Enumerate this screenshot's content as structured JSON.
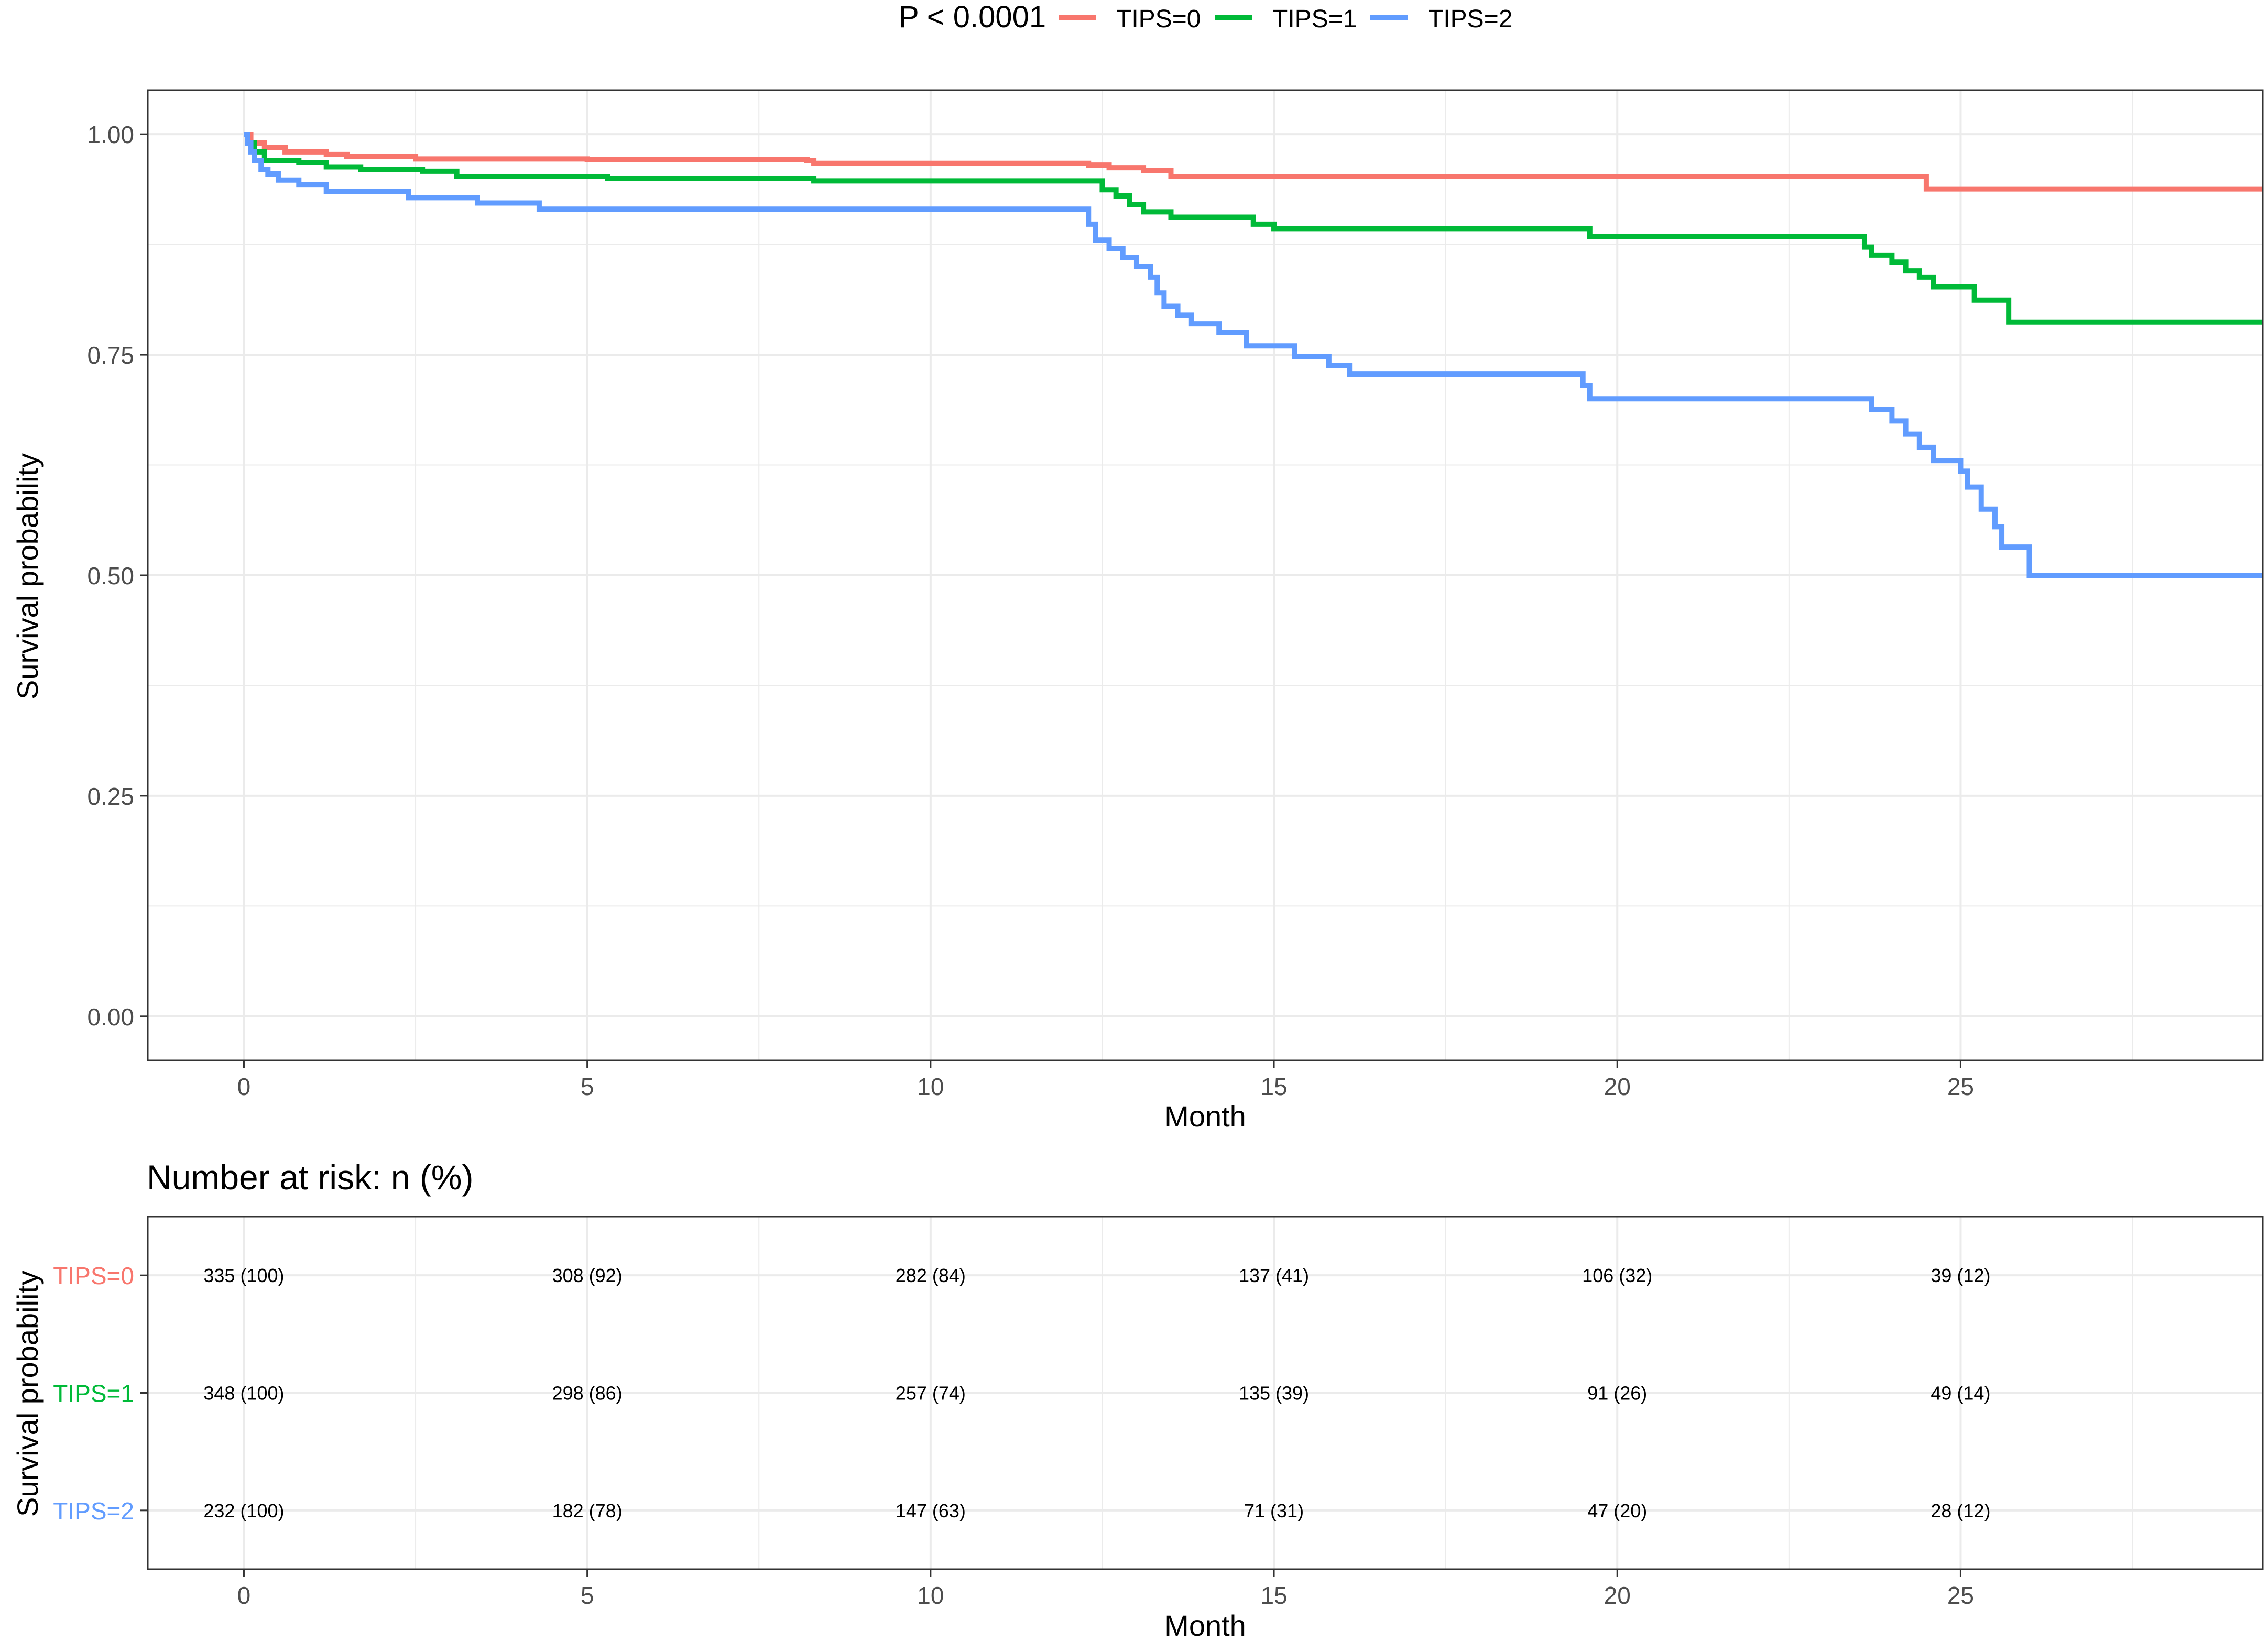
{
  "colors": {
    "tips0": "#F8766D",
    "tips1": "#00BA38",
    "tips2": "#619CFF",
    "grid": "#EBEBEB",
    "axis_text": "#4D4D4D",
    "panel_border": "#333333"
  },
  "legend": {
    "pvalue": "P < 0.0001",
    "position": "top",
    "items": [
      {
        "label": "TIPS=0",
        "color": "#F8766D"
      },
      {
        "label": "TIPS=1",
        "color": "#00BA38"
      },
      {
        "label": "TIPS=2",
        "color": "#619CFF"
      }
    ]
  },
  "chart_data": [
    {
      "type": "line",
      "subtype": "kaplan-meier-step",
      "title": "",
      "xlabel": "Month",
      "ylabel": "Survival probability",
      "xlim": [
        -1.4,
        29.4
      ],
      "ylim": [
        -0.05,
        1.05
      ],
      "x_ticks": [
        0,
        5,
        10,
        15,
        20,
        25
      ],
      "y_ticks": [
        0.0,
        0.25,
        0.5,
        0.75,
        1.0
      ],
      "y_tick_labels": [
        "0.00",
        "0.25",
        "0.50",
        "0.75",
        "1.00"
      ],
      "grid": true,
      "series": [
        {
          "name": "TIPS=0",
          "color": "#F8766D",
          "points": [
            [
              0,
              1.0
            ],
            [
              0.1,
              0.99
            ],
            [
              0.3,
              0.985
            ],
            [
              0.6,
              0.98
            ],
            [
              1.2,
              0.977
            ],
            [
              1.5,
              0.975
            ],
            [
              2.5,
              0.972
            ],
            [
              5,
              0.971
            ],
            [
              8.2,
              0.97
            ],
            [
              8.3,
              0.967
            ],
            [
              12.3,
              0.965
            ],
            [
              12.6,
              0.962
            ],
            [
              13.1,
              0.959
            ],
            [
              13.5,
              0.952
            ],
            [
              24.5,
              0.952
            ],
            [
              24.5,
              0.938
            ],
            [
              29.4,
              0.938
            ]
          ]
        },
        {
          "name": "TIPS=1",
          "color": "#00BA38",
          "points": [
            [
              0,
              1.0
            ],
            [
              0.05,
              0.99
            ],
            [
              0.15,
              0.98
            ],
            [
              0.3,
              0.97
            ],
            [
              0.8,
              0.968
            ],
            [
              1.2,
              0.963
            ],
            [
              1.7,
              0.96
            ],
            [
              2.6,
              0.958
            ],
            [
              3.1,
              0.952
            ],
            [
              5.3,
              0.95
            ],
            [
              8.3,
              0.947
            ],
            [
              12.3,
              0.947
            ],
            [
              12.5,
              0.937
            ],
            [
              12.7,
              0.93
            ],
            [
              12.9,
              0.92
            ],
            [
              13.1,
              0.912
            ],
            [
              13.5,
              0.906
            ],
            [
              14.7,
              0.898
            ],
            [
              15,
              0.893
            ],
            [
              19.6,
              0.893
            ],
            [
              19.6,
              0.884
            ],
            [
              23.6,
              0.884
            ],
            [
              23.6,
              0.872
            ],
            [
              23.7,
              0.863
            ],
            [
              24.0,
              0.855
            ],
            [
              24.2,
              0.845
            ],
            [
              24.4,
              0.838
            ],
            [
              24.6,
              0.827
            ],
            [
              25.2,
              0.812
            ],
            [
              25.7,
              0.812
            ],
            [
              25.7,
              0.787
            ],
            [
              29.4,
              0.787
            ]
          ]
        },
        {
          "name": "TIPS=2",
          "color": "#619CFF",
          "points": [
            [
              0,
              1.0
            ],
            [
              0.05,
              0.99
            ],
            [
              0.1,
              0.98
            ],
            [
              0.15,
              0.97
            ],
            [
              0.25,
              0.96
            ],
            [
              0.35,
              0.955
            ],
            [
              0.5,
              0.948
            ],
            [
              0.8,
              0.943
            ],
            [
              1.2,
              0.935
            ],
            [
              2.4,
              0.928
            ],
            [
              3.4,
              0.922
            ],
            [
              4.3,
              0.915
            ],
            [
              12.2,
              0.915
            ],
            [
              12.3,
              0.898
            ],
            [
              12.4,
              0.88
            ],
            [
              12.6,
              0.87
            ],
            [
              12.8,
              0.86
            ],
            [
              13.0,
              0.85
            ],
            [
              13.2,
              0.838
            ],
            [
              13.3,
              0.82
            ],
            [
              13.4,
              0.805
            ],
            [
              13.6,
              0.795
            ],
            [
              13.8,
              0.785
            ],
            [
              14.2,
              0.775
            ],
            [
              14.6,
              0.76
            ],
            [
              15.3,
              0.748
            ],
            [
              15.8,
              0.738
            ],
            [
              16.1,
              0.728
            ],
            [
              19.4,
              0.728
            ],
            [
              19.5,
              0.715
            ],
            [
              19.6,
              0.7
            ],
            [
              23.6,
              0.7
            ],
            [
              23.7,
              0.688
            ],
            [
              24.0,
              0.675
            ],
            [
              24.2,
              0.66
            ],
            [
              24.4,
              0.645
            ],
            [
              24.6,
              0.63
            ],
            [
              25.0,
              0.618
            ],
            [
              25.1,
              0.6
            ],
            [
              25.3,
              0.575
            ],
            [
              25.5,
              0.555
            ],
            [
              25.6,
              0.532
            ],
            [
              25.9,
              0.532
            ],
            [
              26.0,
              0.5
            ],
            [
              29.4,
              0.5
            ]
          ]
        }
      ]
    },
    {
      "type": "table",
      "title": "Number at risk: n (%)",
      "xlabel": "Month",
      "ylabel": "Survival probability",
      "xlim": [
        -1.4,
        29.4
      ],
      "x_ticks": [
        0,
        5,
        10,
        15,
        20,
        25
      ],
      "rows": [
        {
          "name": "TIPS=0",
          "color": "#F8766D",
          "values": [
            "335 (100)",
            "308 (92)",
            "282 (84)",
            "137 (41)",
            "106 (32)",
            "39 (12)"
          ]
        },
        {
          "name": "TIPS=1",
          "color": "#00BA38",
          "values": [
            "348 (100)",
            "298 (86)",
            "257 (74)",
            "135 (39)",
            "91 (26)",
            "49 (14)"
          ]
        },
        {
          "name": "TIPS=2",
          "color": "#619CFF",
          "values": [
            "232 (100)",
            "182 (78)",
            "147 (63)",
            "71 (31)",
            "47 (20)",
            "28 (12)"
          ]
        }
      ]
    }
  ]
}
